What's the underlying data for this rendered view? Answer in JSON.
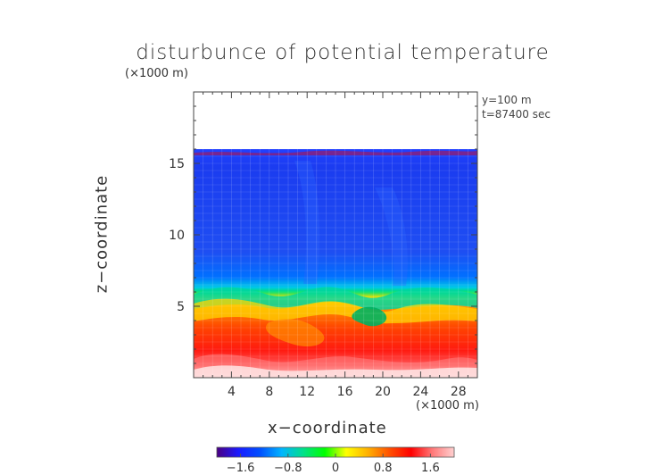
{
  "chart_data": {
    "type": "heatmap",
    "title": "disturbunce of potential temperature",
    "xlabel": "x−coordinate",
    "ylabel": "z−coordinate",
    "x_unit": "(×1000 m)",
    "y_unit": "(×1000 m)",
    "annotations": [
      "y=100 m",
      "t=87400 sec"
    ],
    "xlim": [
      0,
      30
    ],
    "ylim": [
      0,
      20
    ],
    "x_ticks": [
      4,
      8,
      12,
      16,
      20,
      24,
      28
    ],
    "x_tick_labels": [
      "4",
      "8",
      "12",
      "16",
      "20",
      "24",
      "28"
    ],
    "y_ticks": [
      5,
      10,
      15
    ],
    "y_tick_labels": [
      "5",
      "10",
      "15"
    ],
    "data_top_z": 16,
    "colorbar": {
      "range": [
        -2.0,
        2.0
      ],
      "tick_values": [
        -1.6,
        -0.8,
        0,
        0.8,
        1.6
      ],
      "tick_labels": [
        "−1.6",
        "−0.8",
        "0",
        "0.8",
        "1.6"
      ],
      "colors": [
        "#4b0082",
        "#1a1aff",
        "#0050ff",
        "#00b4ff",
        "#00e08a",
        "#00ff00",
        "#ffff00",
        "#ffb000",
        "#ff5000",
        "#ff0000",
        "#ff7a7a",
        "#ffd0d0"
      ]
    },
    "grid": true,
    "colormap": "rainbow (purple-blue-cyan-green-yellow-red-white)"
  }
}
